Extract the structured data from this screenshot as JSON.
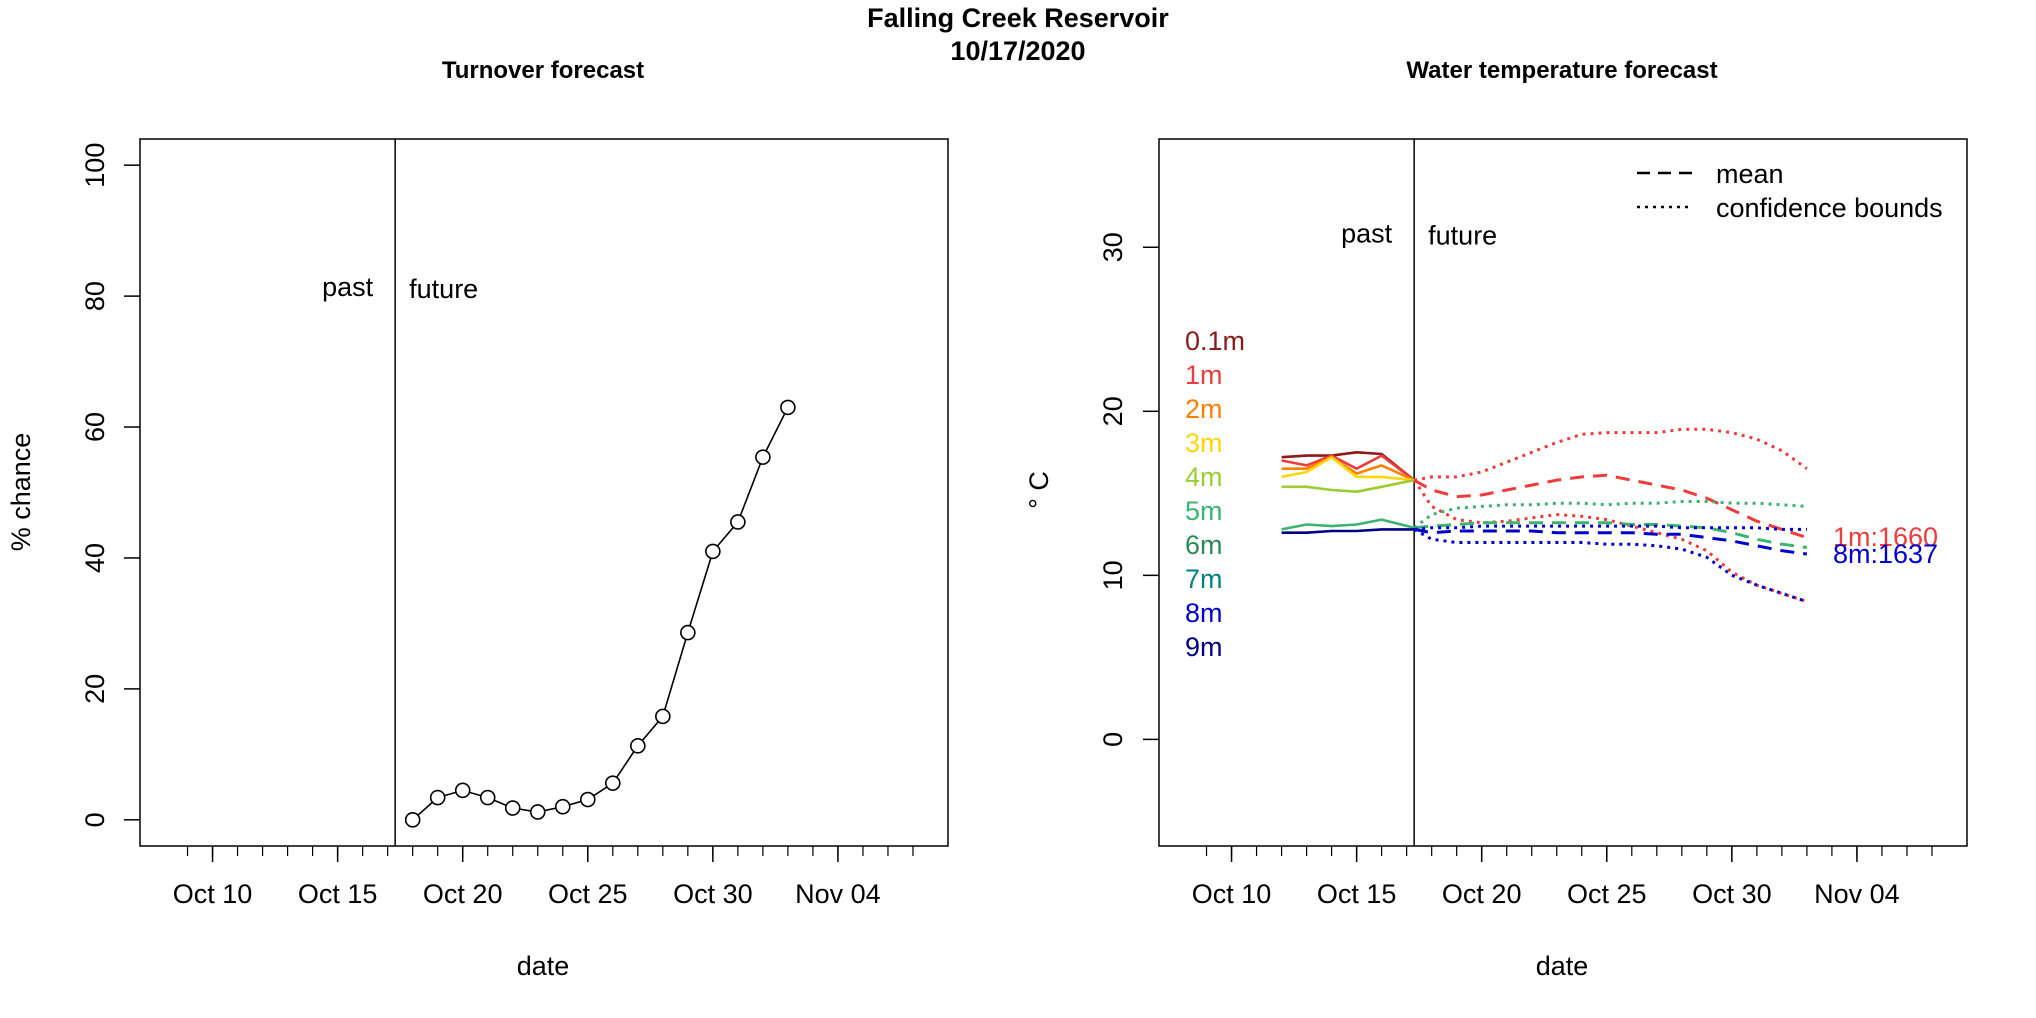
{
  "figure": {
    "title_line1": "Falling Creek Reservoir",
    "title_line2": "10/17/2020"
  },
  "chart_data": [
    {
      "type": "line",
      "title": "Turnover forecast",
      "xlabel": "date",
      "ylabel": "% chance",
      "x_ticks": [
        "Oct 10",
        "Oct 15",
        "Oct 20",
        "Oct 25",
        "Oct 30",
        "Nov 04"
      ],
      "x_tick_days": [
        10,
        15,
        20,
        25,
        30,
        35
      ],
      "x_range_days": [
        7.1,
        39.4
      ],
      "y_ticks": [
        0,
        20,
        40,
        60,
        80,
        100
      ],
      "ylim": [
        -4,
        104
      ],
      "divider_day": 17.3,
      "past_label": "past",
      "future_label": "future",
      "annotation_y": 80,
      "series": [
        {
          "name": "turnover chance",
          "x_days": [
            18,
            19,
            20,
            21,
            22,
            23,
            24,
            25,
            26,
            27,
            28,
            29,
            30,
            31,
            32,
            33
          ],
          "values": [
            0,
            3.4,
            4.5,
            3.4,
            1.8,
            1.2,
            2.0,
            3.1,
            5.6,
            11.3,
            15.8,
            28.6,
            41.0,
            45.5,
            55.4,
            63.0
          ]
        }
      ]
    },
    {
      "type": "line",
      "title": "Water temperature forecast",
      "xlabel": "date",
      "ylabel": "° C",
      "x_ticks": [
        "Oct 10",
        "Oct 15",
        "Oct 20",
        "Oct 25",
        "Oct 30",
        "Nov 04"
      ],
      "x_tick_days": [
        10,
        15,
        20,
        25,
        30,
        35
      ],
      "x_range_days": [
        7.1,
        39.4
      ],
      "y_ticks": [
        0,
        10,
        20,
        30
      ],
      "ylim": [
        -6.5,
        36.6
      ],
      "divider_day": 17.3,
      "past_label": "past",
      "future_label": "future",
      "annotation_y": 30.3,
      "legend": [
        {
          "label": "mean",
          "style": "dashed"
        },
        {
          "label": "confidence bounds",
          "style": "dotted"
        }
      ],
      "depth_labels": [
        {
          "label": "0.1m",
          "color": "#8b1a1a"
        },
        {
          "label": "1m",
          "color": "#ee3b3b"
        },
        {
          "label": "2m",
          "color": "#ff7f00"
        },
        {
          "label": "3m",
          "color": "#ffd700"
        },
        {
          "label": "4m",
          "color": "#9acd32"
        },
        {
          "label": "5m",
          "color": "#3cb371"
        },
        {
          "label": "6m",
          "color": "#2e8b57"
        },
        {
          "label": "7m",
          "color": "#008080"
        },
        {
          "label": "8m",
          "color": "#0000cd"
        },
        {
          "label": "9m",
          "color": "#000080"
        }
      ],
      "right_labels": [
        {
          "label": "1m:1660",
          "color": "#ee3b3b"
        },
        {
          "label": "8m:1637",
          "color": "#0000cd"
        }
      ],
      "observed_days": [
        12,
        13,
        14,
        15,
        16,
        17.3
      ],
      "observed_series": [
        {
          "name": "0.1m",
          "color": "#8b1a1a",
          "values": [
            17.2,
            17.3,
            17.3,
            17.5,
            17.4,
            15.8
          ]
        },
        {
          "name": "1m",
          "color": "#ee3b3b",
          "values": [
            17.0,
            16.7,
            17.3,
            16.5,
            17.3,
            15.8
          ]
        },
        {
          "name": "2m",
          "color": "#ff7f00",
          "values": [
            16.5,
            16.5,
            17.2,
            16.2,
            16.7,
            15.8
          ]
        },
        {
          "name": "3m",
          "color": "#ffd700",
          "values": [
            16.0,
            16.3,
            17.2,
            16.0,
            16.0,
            15.8
          ]
        },
        {
          "name": "4m",
          "color": "#9acd32",
          "values": [
            15.4,
            15.4,
            15.2,
            15.1,
            15.4,
            15.8
          ]
        },
        {
          "name": "5m",
          "color": "#3cb371",
          "values": [
            12.8,
            13.1,
            13.0,
            13.1,
            13.4,
            12.9
          ]
        },
        {
          "name": "9m",
          "color": "#000080",
          "values": [
            12.6,
            12.6,
            12.7,
            12.7,
            12.8,
            12.8
          ]
        }
      ],
      "forecast_days": [
        17.3,
        18,
        19,
        20,
        21,
        22,
        23,
        24,
        25,
        26,
        27,
        28,
        29,
        30,
        31,
        32,
        33
      ],
      "forecast_series": [
        {
          "name": "1m mean",
          "color": "#ee3b3b",
          "style": "dashed",
          "values": [
            15.8,
            15.2,
            14.8,
            14.9,
            15.2,
            15.5,
            15.8,
            16.0,
            16.1,
            15.8,
            15.5,
            15.2,
            14.7,
            14.0,
            13.3,
            12.8,
            12.3
          ]
        },
        {
          "name": "1m upper",
          "color": "#ee3b3b",
          "style": "dotted",
          "values": [
            15.8,
            16.0,
            16.0,
            16.3,
            16.9,
            17.5,
            18.1,
            18.6,
            18.7,
            18.7,
            18.7,
            18.9,
            18.9,
            18.7,
            18.3,
            17.6,
            16.5
          ]
        },
        {
          "name": "1m lower",
          "color": "#ee3b3b",
          "style": "dotted",
          "values": [
            15.8,
            14.2,
            13.4,
            13.2,
            13.3,
            13.5,
            13.7,
            13.6,
            13.4,
            13.0,
            12.6,
            12.2,
            11.5,
            10.2,
            9.4,
            8.9,
            8.4
          ]
        },
        {
          "name": "5m mean",
          "color": "#3cb371",
          "style": "dashed",
          "values": [
            12.9,
            13.0,
            13.1,
            13.2,
            13.2,
            13.2,
            13.2,
            13.2,
            13.2,
            13.1,
            13.1,
            13.0,
            12.9,
            12.6,
            12.2,
            11.9,
            11.7
          ]
        },
        {
          "name": "5m upper",
          "color": "#3cb371",
          "style": "dotted",
          "values": [
            12.9,
            13.7,
            14.1,
            14.2,
            14.3,
            14.3,
            14.4,
            14.4,
            14.3,
            14.4,
            14.4,
            14.5,
            14.5,
            14.4,
            14.4,
            14.3,
            14.2
          ]
        },
        {
          "name": "8m mean",
          "color": "#0000cd",
          "style": "dashed",
          "values": [
            12.8,
            12.6,
            12.7,
            12.7,
            12.7,
            12.7,
            12.6,
            12.6,
            12.6,
            12.6,
            12.5,
            12.5,
            12.3,
            12.1,
            11.8,
            11.5,
            11.3
          ]
        },
        {
          "name": "8m upper",
          "color": "#0000cd",
          "style": "dotted",
          "values": [
            12.8,
            12.9,
            12.9,
            13.0,
            13.0,
            13.0,
            13.0,
            13.0,
            13.0,
            13.0,
            13.0,
            12.9,
            12.9,
            12.9,
            12.9,
            12.8,
            12.8
          ]
        },
        {
          "name": "8m lower",
          "color": "#0000cd",
          "style": "dotted",
          "values": [
            12.8,
            12.2,
            12.0,
            12.0,
            12.0,
            12.0,
            12.0,
            12.0,
            11.9,
            11.9,
            11.8,
            11.6,
            11.1,
            10.0,
            9.4,
            8.9,
            8.4
          ]
        }
      ]
    }
  ]
}
